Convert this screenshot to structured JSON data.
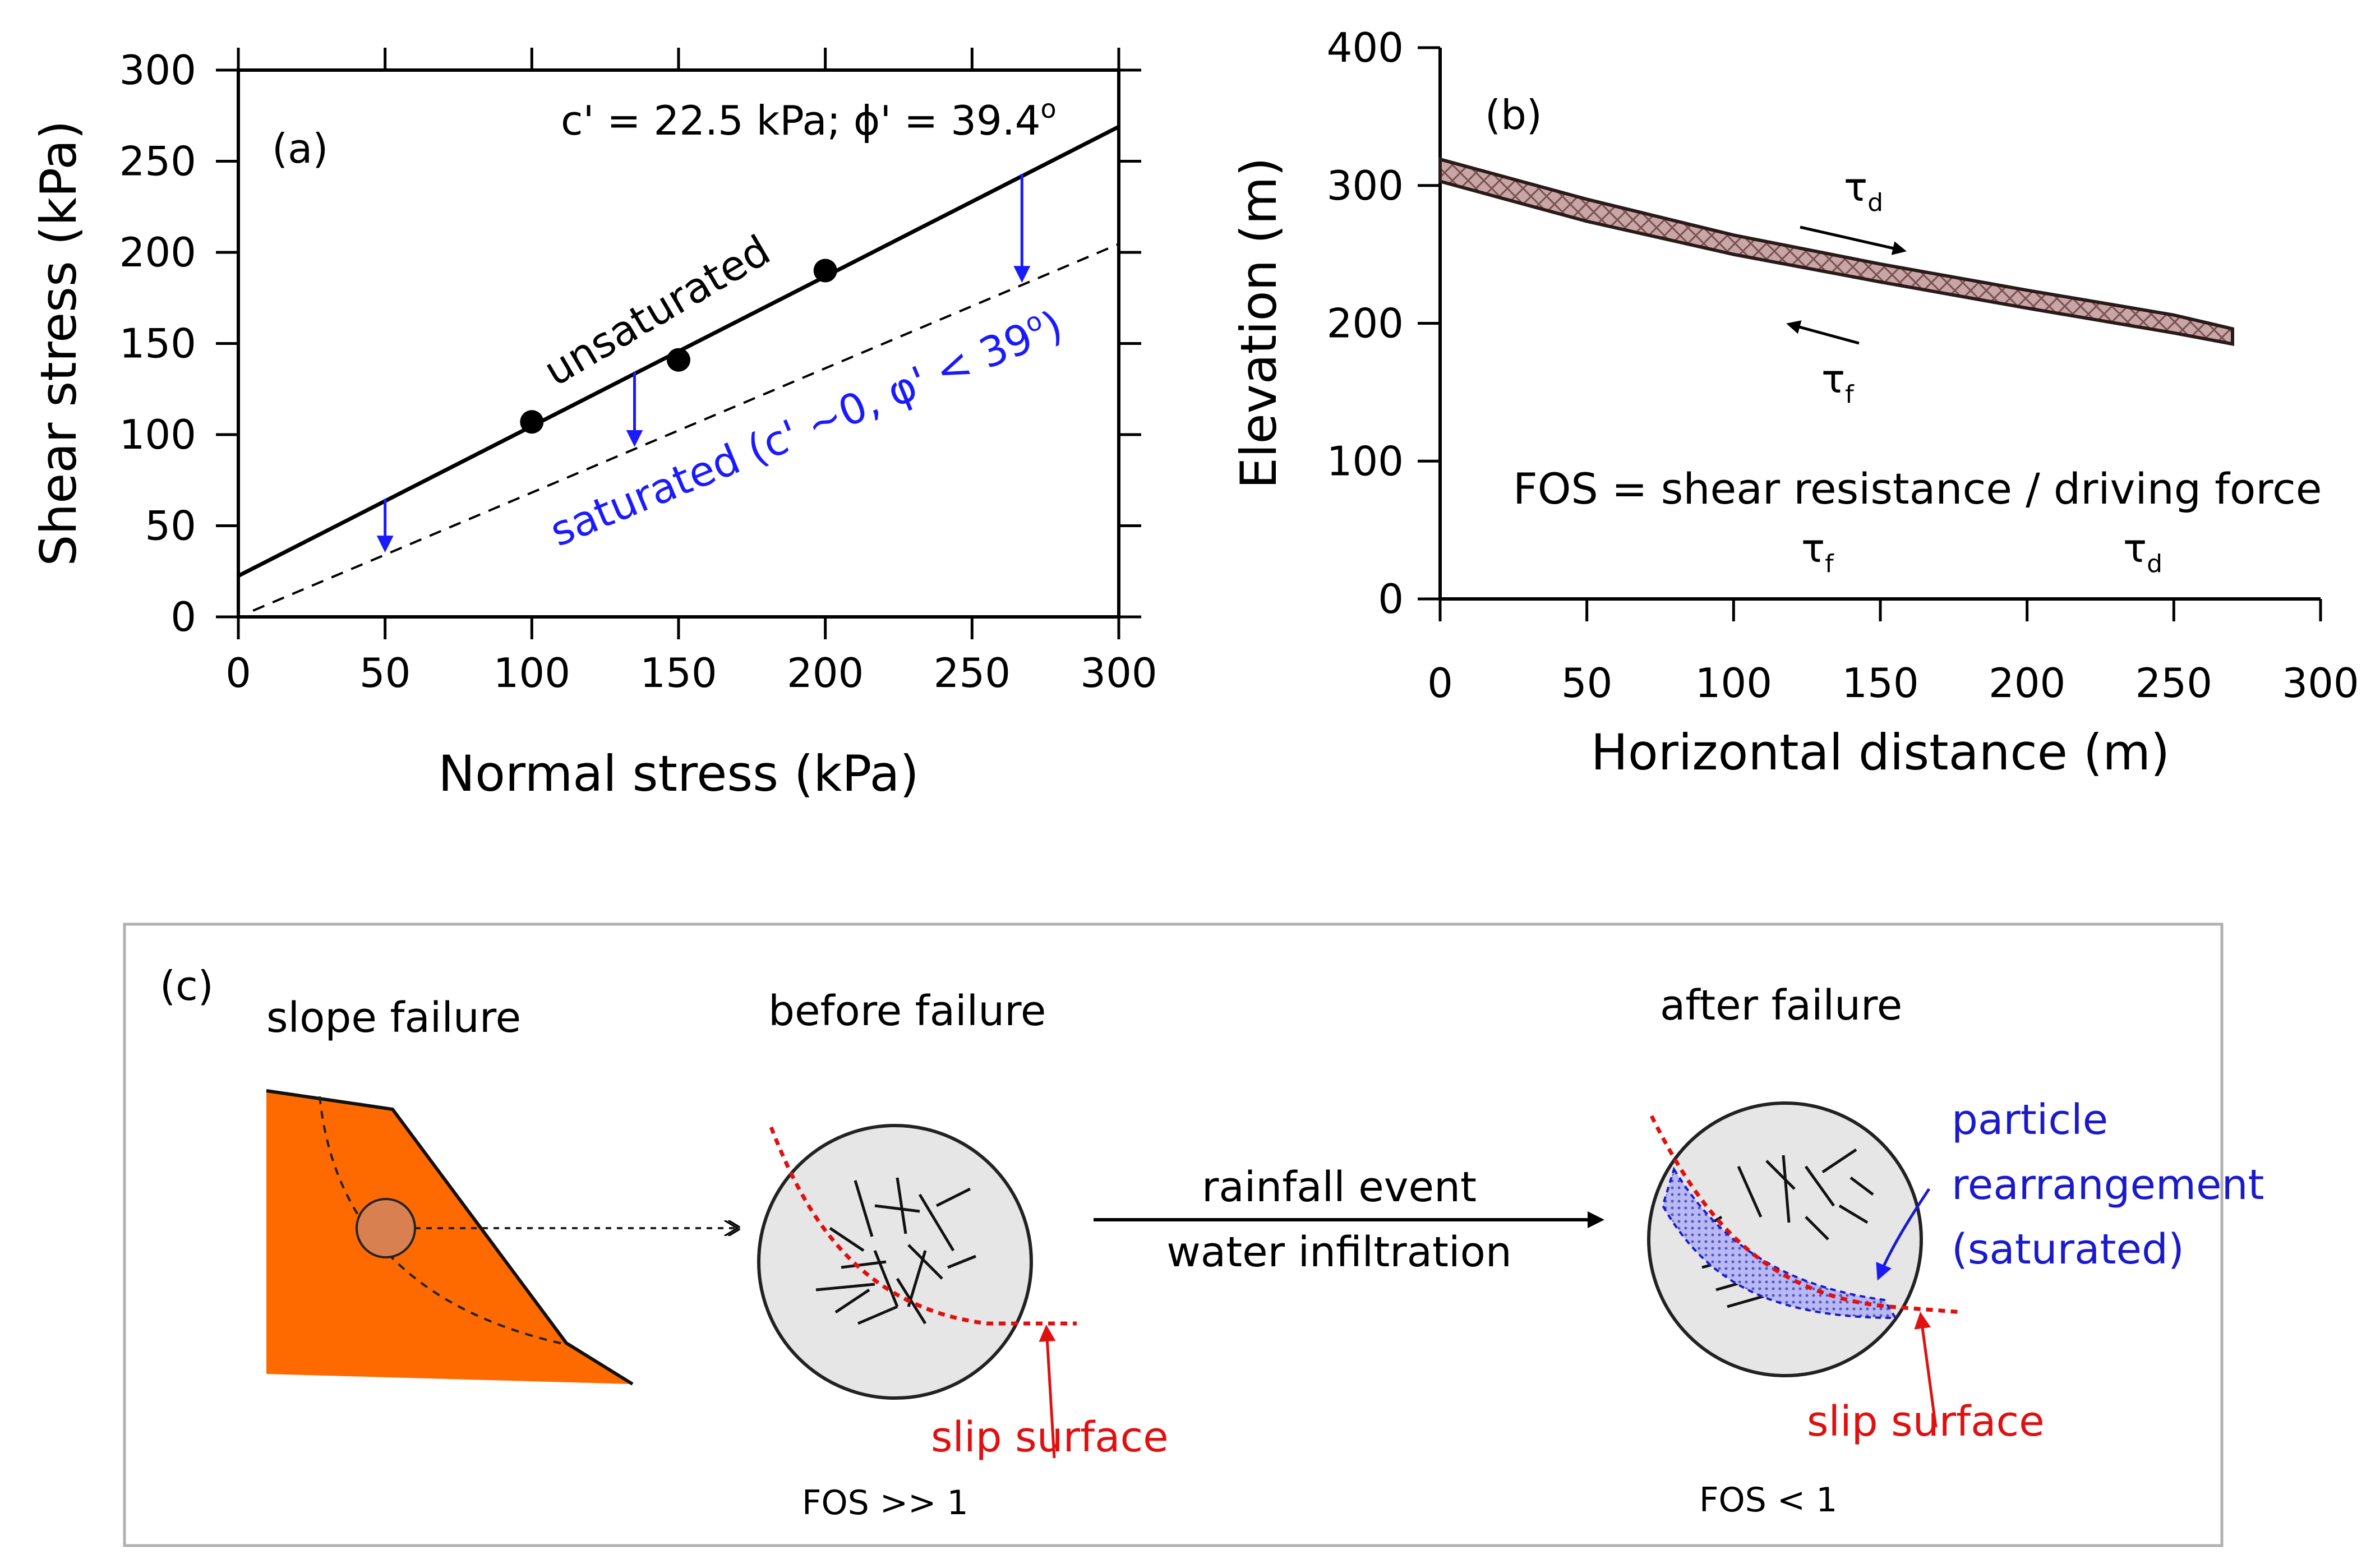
{
  "chart_data": [
    {
      "type": "scatter",
      "panel_label": "(a)",
      "title": "",
      "xlabel": "Normal stress (kPa)",
      "ylabel": "Shear stress (kPa)",
      "xlim": [
        0,
        300
      ],
      "ylim": [
        0,
        300
      ],
      "xticks": [
        "0",
        "50",
        "100",
        "150",
        "200",
        "250",
        "300"
      ],
      "yticks": [
        "0",
        "50",
        "100",
        "150",
        "200",
        "250",
        "300"
      ],
      "params_label": "c' = 22.5 kPa; ϕ' = 39.4",
      "params_degree": "o",
      "series": [
        {
          "name": "unsaturated",
          "style": "solid",
          "color": "#000000",
          "x": [
            100,
            150,
            200
          ],
          "y": [
            107,
            141,
            190
          ],
          "intercept": 22.5,
          "slope": 0.8214
        },
        {
          "name": "saturated",
          "style": "dashed",
          "color": "#000000",
          "label_color": "#1a1aff",
          "intercept": 0,
          "slope": 0.682
        }
      ],
      "line_labels": {
        "unsaturated": "unsaturated",
        "saturated": "saturated (c' ~0, φ' < 39",
        "saturated_degree": "o",
        "saturated_close": ")"
      },
      "shift_arrows_x": [
        50,
        135,
        267
      ],
      "arrow_color": "#1a1aff"
    },
    {
      "type": "line",
      "panel_label": "(b)",
      "title": "",
      "xlabel": "Horizontal distance (m)",
      "ylabel": "Elevation (m)",
      "xlim": [
        0,
        300
      ],
      "ylim": [
        0,
        400
      ],
      "xticks": [
        "0",
        "50",
        "100",
        "150",
        "200",
        "250",
        "300"
      ],
      "yticks": [
        "0",
        "100",
        "200",
        "300",
        "400"
      ],
      "slope_profile": {
        "x": [
          0,
          50,
          100,
          150,
          200,
          250,
          270
        ],
        "y_bottom": [
          303,
          274,
          250,
          230,
          211,
          193,
          185
        ],
        "y_top": [
          319,
          290,
          264,
          243,
          224,
          206,
          196
        ],
        "fill": "#c8a6a6"
      },
      "tau": {
        "symbol": "τ",
        "d": "d",
        "f": "f"
      },
      "fos_text": "FOS = shear resistance / driving force"
    }
  ],
  "panel_c": {
    "label": "(c)",
    "slope_failure": "slope failure",
    "before_failure": "before failure",
    "after_failure": "after failure",
    "event_line1": "rainfall event",
    "event_line2": "water infiltration",
    "slip_surface": "slip surface",
    "particle_line1": "particle",
    "particle_line2": "rearrangement",
    "particle_line3": "(saturated)",
    "fos_before": "FOS >> 1",
    "fos_after": "FOS < 1",
    "colors": {
      "slope": "#ff6a00",
      "circle_fill": "#e6e6e6",
      "slip": "#e01010",
      "saturated": "#1a1acc",
      "saturated_fill": "#a9a9ee"
    }
  }
}
